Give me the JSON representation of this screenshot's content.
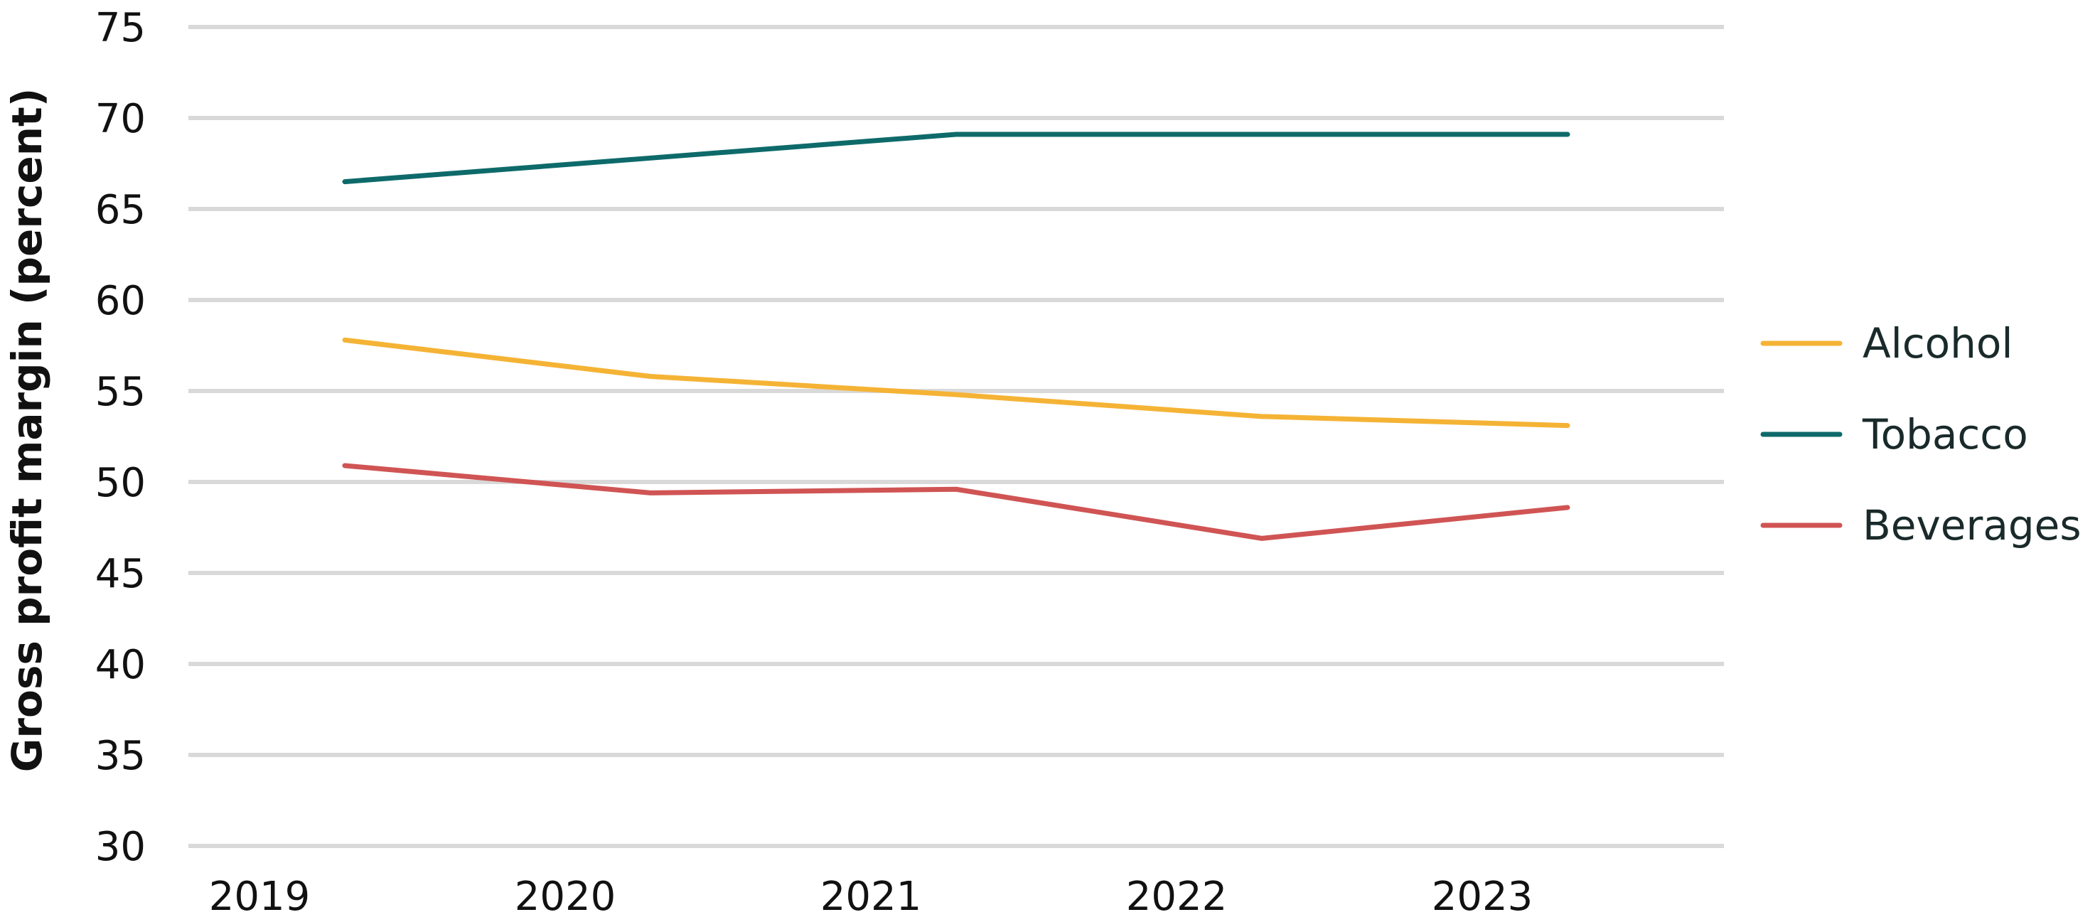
{
  "chart_data": {
    "type": "line",
    "title": "",
    "xlabel": "",
    "ylabel": "Gross profit margin (percent)",
    "categories": [
      "2019",
      "2020",
      "2021",
      "2022",
      "2023"
    ],
    "ylim": [
      30,
      75
    ],
    "yticks": [
      30,
      35,
      40,
      45,
      50,
      55,
      60,
      65,
      70,
      75
    ],
    "grid": true,
    "legend_position": "right",
    "series": [
      {
        "name": "Alcohol",
        "color": "#F5B335",
        "values": [
          57.8,
          55.8,
          54.8,
          53.6,
          53.1
        ]
      },
      {
        "name": "Tobacco",
        "color": "#0E6A6A",
        "values": [
          66.5,
          67.8,
          69.1,
          69.1,
          69.1
        ]
      },
      {
        "name": "Beverages",
        "color": "#D05454",
        "values": [
          50.9,
          49.4,
          49.6,
          46.9,
          48.6
        ]
      }
    ]
  }
}
